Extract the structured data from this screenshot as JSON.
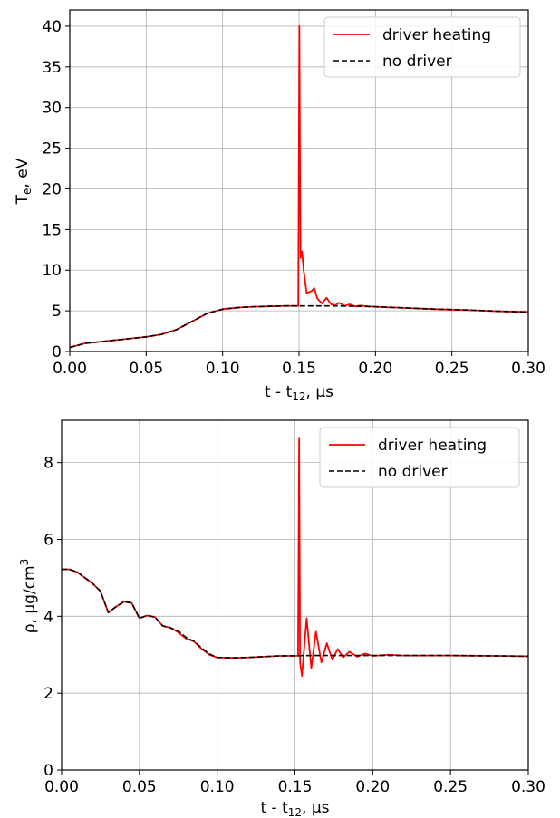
{
  "chart_data": [
    {
      "type": "line",
      "title": "",
      "xlabel": "t - t",
      "xlabel_sub": "12",
      "xlabel_unit": ", μs",
      "ylabel": "T",
      "ylabel_sub": "e",
      "ylabel_unit": ", eV",
      "xlim": [
        0,
        0.3
      ],
      "ylim": [
        0,
        42
      ],
      "xticks": [
        "0.00",
        "0.05",
        "0.10",
        "0.15",
        "0.20",
        "0.25",
        "0.30"
      ],
      "yticks": [
        "0",
        "5",
        "10",
        "15",
        "20",
        "25",
        "30",
        "35",
        "40"
      ],
      "grid": true,
      "legend": "top-right",
      "series": [
        {
          "name": "driver heating",
          "color": "#ff0000",
          "style": "solid",
          "points": [
            [
              0,
              0.5
            ],
            [
              0.01,
              1.0
            ],
            [
              0.02,
              1.2
            ],
            [
              0.03,
              1.4
            ],
            [
              0.04,
              1.6
            ],
            [
              0.05,
              1.8
            ],
            [
              0.06,
              2.1
            ],
            [
              0.07,
              2.7
            ],
            [
              0.08,
              3.7
            ],
            [
              0.09,
              4.7
            ],
            [
              0.1,
              5.2
            ],
            [
              0.11,
              5.4
            ],
            [
              0.12,
              5.5
            ],
            [
              0.13,
              5.55
            ],
            [
              0.14,
              5.6
            ],
            [
              0.1495,
              5.6
            ],
            [
              0.1502,
              40.0
            ],
            [
              0.1507,
              20.0
            ],
            [
              0.151,
              11.5
            ],
            [
              0.152,
              12.3
            ],
            [
              0.153,
              10.0
            ],
            [
              0.155,
              7.2
            ],
            [
              0.158,
              7.4
            ],
            [
              0.16,
              7.8
            ],
            [
              0.162,
              6.5
            ],
            [
              0.165,
              5.9
            ],
            [
              0.168,
              6.6
            ],
            [
              0.171,
              5.8
            ],
            [
              0.174,
              5.7
            ],
            [
              0.176,
              6.0
            ],
            [
              0.18,
              5.6
            ],
            [
              0.183,
              5.8
            ],
            [
              0.187,
              5.55
            ],
            [
              0.19,
              5.65
            ],
            [
              0.195,
              5.55
            ],
            [
              0.2,
              5.5
            ],
            [
              0.22,
              5.35
            ],
            [
              0.24,
              5.2
            ],
            [
              0.26,
              5.1
            ],
            [
              0.28,
              4.95
            ],
            [
              0.3,
              4.85
            ]
          ]
        },
        {
          "name": "no driver",
          "color": "#000000",
          "style": "dashed",
          "points": [
            [
              0,
              0.5
            ],
            [
              0.01,
              1.0
            ],
            [
              0.02,
              1.2
            ],
            [
              0.03,
              1.4
            ],
            [
              0.04,
              1.6
            ],
            [
              0.05,
              1.8
            ],
            [
              0.06,
              2.1
            ],
            [
              0.07,
              2.7
            ],
            [
              0.08,
              3.7
            ],
            [
              0.09,
              4.7
            ],
            [
              0.1,
              5.2
            ],
            [
              0.11,
              5.4
            ],
            [
              0.12,
              5.5
            ],
            [
              0.13,
              5.55
            ],
            [
              0.14,
              5.6
            ],
            [
              0.15,
              5.6
            ],
            [
              0.16,
              5.6
            ],
            [
              0.17,
              5.6
            ],
            [
              0.18,
              5.58
            ],
            [
              0.19,
              5.55
            ],
            [
              0.2,
              5.5
            ],
            [
              0.22,
              5.35
            ],
            [
              0.24,
              5.2
            ],
            [
              0.26,
              5.1
            ],
            [
              0.28,
              4.95
            ],
            [
              0.3,
              4.85
            ]
          ]
        }
      ]
    },
    {
      "type": "line",
      "title": "",
      "xlabel": "t - t",
      "xlabel_sub": "12",
      "xlabel_unit": ", μs",
      "ylabel": "ρ, μg/cm",
      "ylabel_sup": "3",
      "xlim": [
        0,
        0.3
      ],
      "ylim": [
        0,
        9.1
      ],
      "xticks": [
        "0.00",
        "0.05",
        "0.10",
        "0.15",
        "0.20",
        "0.25",
        "0.30"
      ],
      "yticks": [
        "0",
        "2",
        "4",
        "6",
        "8"
      ],
      "grid": true,
      "legend": "top-right",
      "series": [
        {
          "name": "driver heating",
          "color": "#ff0000",
          "style": "solid",
          "points": [
            [
              0,
              5.22
            ],
            [
              0.005,
              5.22
            ],
            [
              0.01,
              5.15
            ],
            [
              0.015,
              5.0
            ],
            [
              0.02,
              4.85
            ],
            [
              0.025,
              4.65
            ],
            [
              0.03,
              4.1
            ],
            [
              0.035,
              4.25
            ],
            [
              0.04,
              4.38
            ],
            [
              0.045,
              4.35
            ],
            [
              0.05,
              3.95
            ],
            [
              0.055,
              4.02
            ],
            [
              0.06,
              3.98
            ],
            [
              0.065,
              3.75
            ],
            [
              0.07,
              3.7
            ],
            [
              0.075,
              3.58
            ],
            [
              0.08,
              3.42
            ],
            [
              0.085,
              3.35
            ],
            [
              0.09,
              3.15
            ],
            [
              0.095,
              3.0
            ],
            [
              0.1,
              2.93
            ],
            [
              0.11,
              2.92
            ],
            [
              0.12,
              2.93
            ],
            [
              0.13,
              2.95
            ],
            [
              0.14,
              2.97
            ],
            [
              0.152,
              2.97
            ],
            [
              0.1527,
              8.65
            ],
            [
              0.1533,
              2.8
            ],
            [
              0.1545,
              2.45
            ],
            [
              0.1575,
              3.95
            ],
            [
              0.1605,
              2.65
            ],
            [
              0.1635,
              3.6
            ],
            [
              0.167,
              2.8
            ],
            [
              0.1705,
              3.3
            ],
            [
              0.174,
              2.87
            ],
            [
              0.1775,
              3.15
            ],
            [
              0.181,
              2.93
            ],
            [
              0.185,
              3.08
            ],
            [
              0.19,
              2.95
            ],
            [
              0.195,
              3.03
            ],
            [
              0.2,
              2.97
            ],
            [
              0.21,
              3.0
            ],
            [
              0.22,
              2.98
            ],
            [
              0.25,
              2.98
            ],
            [
              0.28,
              2.97
            ],
            [
              0.3,
              2.96
            ]
          ]
        },
        {
          "name": "no driver",
          "color": "#000000",
          "style": "dashed",
          "points": [
            [
              0,
              5.22
            ],
            [
              0.005,
              5.22
            ],
            [
              0.01,
              5.15
            ],
            [
              0.015,
              5.0
            ],
            [
              0.02,
              4.85
            ],
            [
              0.025,
              4.65
            ],
            [
              0.03,
              4.1
            ],
            [
              0.035,
              4.25
            ],
            [
              0.04,
              4.38
            ],
            [
              0.045,
              4.35
            ],
            [
              0.05,
              3.95
            ],
            [
              0.055,
              4.02
            ],
            [
              0.06,
              3.98
            ],
            [
              0.065,
              3.75
            ],
            [
              0.07,
              3.7
            ],
            [
              0.075,
              3.62
            ],
            [
              0.08,
              3.45
            ],
            [
              0.085,
              3.35
            ],
            [
              0.09,
              3.18
            ],
            [
              0.095,
              3.02
            ],
            [
              0.1,
              2.93
            ],
            [
              0.11,
              2.92
            ],
            [
              0.12,
              2.93
            ],
            [
              0.13,
              2.95
            ],
            [
              0.14,
              2.97
            ],
            [
              0.16,
              2.98
            ],
            [
              0.2,
              2.98
            ],
            [
              0.25,
              2.98
            ],
            [
              0.28,
              2.97
            ],
            [
              0.3,
              2.96
            ]
          ]
        }
      ]
    }
  ]
}
